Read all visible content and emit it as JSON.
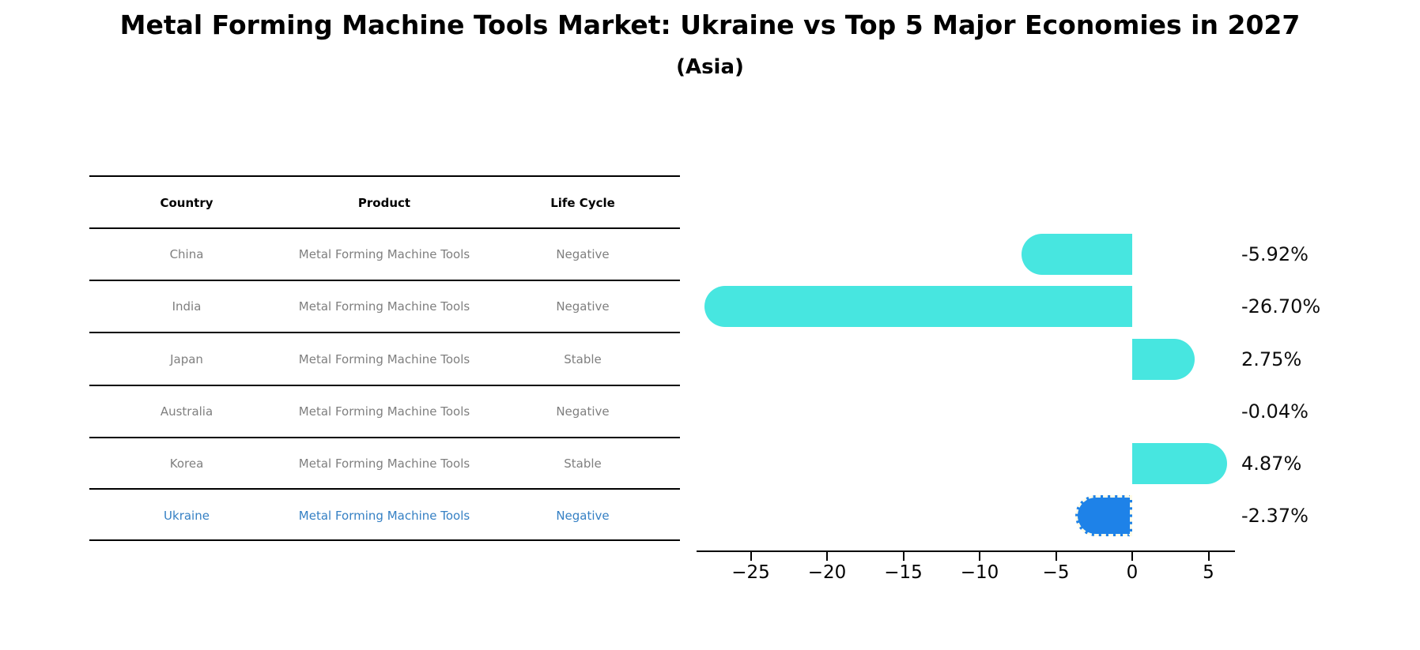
{
  "title": "Metal Forming Machine Tools Market: Ukraine vs Top 5 Major Economies in 2027",
  "subtitle": "(Asia)",
  "table": {
    "headers": [
      "Country",
      "Product",
      "Life Cycle"
    ],
    "rows": [
      {
        "country": "China",
        "product": "Metal Forming Machine Tools",
        "life_cycle": "Negative",
        "highlight": false
      },
      {
        "country": "India",
        "product": "Metal Forming Machine Tools",
        "life_cycle": "Negative",
        "highlight": false
      },
      {
        "country": "Japan",
        "product": "Metal Forming Machine Tools",
        "life_cycle": "Stable",
        "highlight": false
      },
      {
        "country": "Australia",
        "product": "Metal Forming Machine Tools",
        "life_cycle": "Negative",
        "highlight": false
      },
      {
        "country": "Korea",
        "product": "Metal Forming Machine Tools",
        "life_cycle": "Stable",
        "highlight": false
      },
      {
        "country": "Ukraine",
        "product": "Metal Forming Machine Tools",
        "life_cycle": "Negative",
        "highlight": true
      }
    ]
  },
  "chart_data": {
    "type": "bar",
    "orientation": "horizontal",
    "categories": [
      "China",
      "India",
      "Japan",
      "Australia",
      "Korea",
      "Ukraine"
    ],
    "values": [
      -5.92,
      -26.7,
      2.75,
      -0.04,
      4.87,
      -2.37
    ],
    "value_labels": [
      "-5.92%",
      "-26.70%",
      "2.75%",
      "-0.04%",
      "4.87%",
      "-2.37%"
    ],
    "x_ticks": [
      -25,
      -20,
      -15,
      -10,
      -5,
      0,
      5
    ],
    "x_tick_labels": [
      "−25",
      "−20",
      "−15",
      "−10",
      "−5",
      "0",
      "5"
    ],
    "xlim": [
      -28.5,
      6.7
    ],
    "grid": false,
    "legend": "none",
    "bar_color": "#47e6e0",
    "highlight_color": "#1e82e8",
    "highlight_index": 5,
    "highlight_category": "Ukraine"
  },
  "colors": {
    "title_text": "#000000",
    "table_text": "#7f7f7f",
    "table_highlight_text": "#3580c4",
    "axis": "#000000"
  }
}
